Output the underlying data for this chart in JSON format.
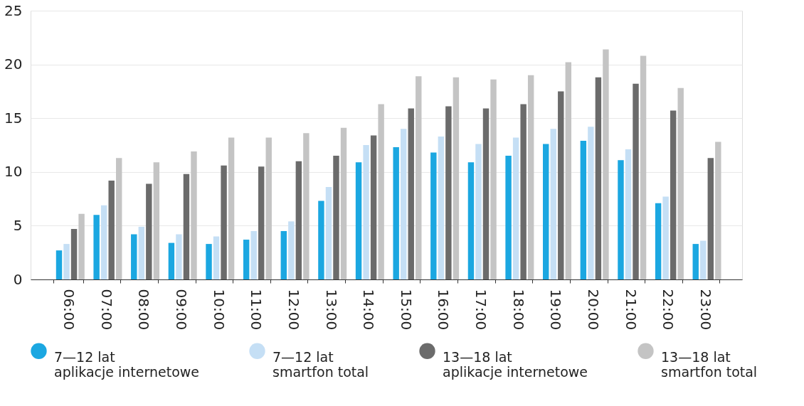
{
  "chart_data": {
    "type": "bar",
    "categories": [
      "06:00",
      "07:00",
      "08:00",
      "09:00",
      "10:00",
      "11:00",
      "12:00",
      "13:00",
      "14:00",
      "15:00",
      "16:00",
      "17:00",
      "18:00",
      "19:00",
      "20:00",
      "21:00",
      "22:00",
      "23:00"
    ],
    "series": [
      {
        "name": "7—12 lat\naplikacje internetowe",
        "color": "#1ba7e1",
        "values": [
          2.7,
          6.0,
          4.2,
          3.4,
          3.3,
          3.7,
          4.5,
          7.3,
          10.9,
          12.3,
          11.8,
          10.9,
          11.5,
          12.6,
          12.9,
          11.1,
          7.1,
          3.3
        ]
      },
      {
        "name": "7—12 lat\nsmartfon total",
        "color": "#c5dff5",
        "values": [
          3.3,
          6.9,
          4.9,
          4.2,
          4.0,
          4.5,
          5.4,
          8.6,
          12.5,
          14.0,
          13.3,
          12.6,
          13.2,
          14.0,
          14.2,
          12.1,
          7.7,
          3.6
        ]
      },
      {
        "name": "13—18 lat\naplikacje internetowe",
        "color": "#6b6b6b",
        "values": [
          4.7,
          9.2,
          8.9,
          9.8,
          10.6,
          10.5,
          11.0,
          11.5,
          13.4,
          15.9,
          16.1,
          15.9,
          16.3,
          17.5,
          18.8,
          18.2,
          15.7,
          11.3
        ]
      },
      {
        "name": "13—18 lat\nsmartfon total",
        "color": "#c4c4c4",
        "values": [
          6.1,
          11.3,
          10.9,
          11.9,
          13.2,
          13.2,
          13.6,
          14.1,
          16.3,
          18.9,
          18.8,
          18.6,
          19.0,
          20.2,
          21.4,
          20.8,
          17.8,
          12.8
        ]
      }
    ],
    "ylim": [
      0,
      25
    ],
    "yticks": [
      0,
      5,
      10,
      15,
      20,
      25
    ],
    "grid": "y",
    "legend": "bottom"
  }
}
